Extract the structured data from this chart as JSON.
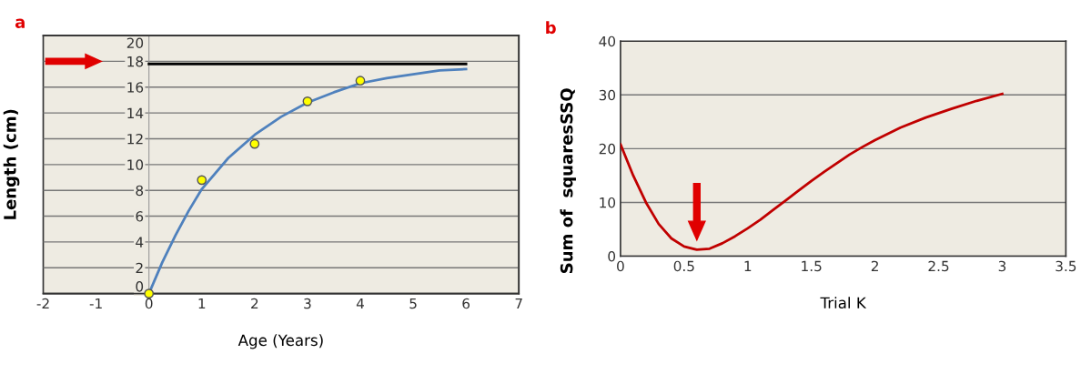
{
  "chart_data": [
    {
      "type": "line",
      "title": "a",
      "xlabel": "Age (Years)",
      "ylabel": "Length (cm)",
      "xlim": [
        -2,
        7
      ],
      "ylim": [
        0,
        20
      ],
      "xticks": [
        -2,
        -1,
        0,
        1,
        2,
        3,
        4,
        5,
        6,
        7
      ],
      "yticks": [
        0,
        2,
        4,
        6,
        8,
        10,
        12,
        14,
        16,
        18,
        20
      ],
      "grid": "y",
      "series": [
        {
          "color": "#4f81bd",
          "x": [
            0,
            0.25,
            0.5,
            0.75,
            1,
            1.5,
            2,
            2.5,
            3,
            3.5,
            4,
            4.5,
            5,
            5.5,
            6
          ],
          "values": [
            0,
            2.4,
            4.5,
            6.4,
            8.1,
            10.5,
            12.3,
            13.7,
            14.8,
            15.6,
            16.3,
            16.7,
            17,
            17.3,
            17.4
          ]
        },
        {
          "color": "#000000",
          "x": [
            0,
            6
          ],
          "values": [
            17.8,
            17.8
          ]
        },
        {
          "type": "scatter",
          "color": "#ffff00",
          "marker": "circle",
          "x": [
            0,
            1,
            2,
            3,
            4
          ],
          "values": [
            0,
            8.8,
            11.6,
            14.9,
            16.5
          ]
        }
      ]
    },
    {
      "type": "line",
      "title": "b",
      "xlabel": "Trial K",
      "ylabel": "Sum of  squaresSSQ",
      "xlim": [
        0,
        3.5
      ],
      "ylim": [
        0,
        40
      ],
      "xticks": [
        0,
        0.5,
        1,
        1.5,
        2,
        2.5,
        3,
        3.5
      ],
      "yticks": [
        0,
        10,
        20,
        30,
        40
      ],
      "grid": "y",
      "series": [
        {
          "color": "#c00000",
          "x": [
            0,
            0.1,
            0.2,
            0.3,
            0.4,
            0.5,
            0.6,
            0.7,
            0.8,
            0.9,
            1,
            1.1,
            1.2,
            1.3,
            1.4,
            1.5,
            1.6,
            1.7,
            1.8,
            1.9,
            2,
            2.2,
            2.4,
            2.6,
            2.8,
            3
          ],
          "values": [
            20.8,
            15,
            10,
            6,
            3.3,
            1.8,
            1.2,
            1.4,
            2.4,
            3.7,
            5.2,
            6.8,
            8.6,
            10.4,
            12.2,
            14,
            15.7,
            17.3,
            18.9,
            20.3,
            21.6,
            23.9,
            25.8,
            27.4,
            28.9,
            30.2
          ]
        }
      ]
    }
  ]
}
